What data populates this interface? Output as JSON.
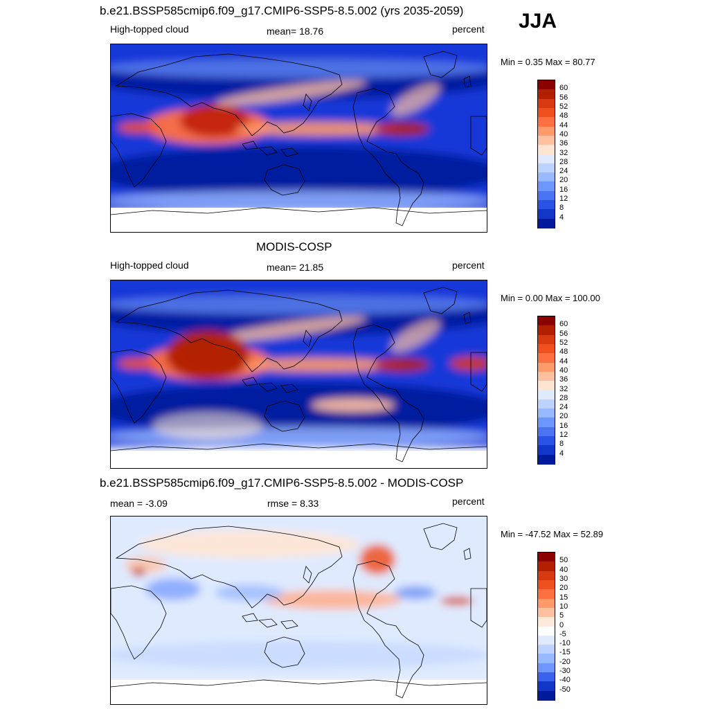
{
  "season": "JJA",
  "panels": [
    {
      "title": "b.e21.BSSP585cmip6.f09_g17.CMIP6-SSP5-8.5.002 (yrs 2035-2059)",
      "left": "High-topped cloud",
      "center": "mean=  18.76",
      "right": "percent",
      "minmax": "Min =   0.35 Max =  80.77",
      "colorbar": {
        "labels": [
          "60",
          "56",
          "52",
          "48",
          "44",
          "40",
          "36",
          "32",
          "28",
          "24",
          "20",
          "16",
          "12",
          "8",
          "4"
        ],
        "colors": [
          "#8b0000",
          "#b22000",
          "#d83a10",
          "#f05020",
          "#ff7040",
          "#ff9a6a",
          "#ffc0a0",
          "#ffe4d2",
          "#dfeaff",
          "#bdd2ff",
          "#98b8ff",
          "#6e96ff",
          "#4a74f2",
          "#2a52e4",
          "#1236c8",
          "#001a9c"
        ]
      },
      "style": "model"
    },
    {
      "title": "MODIS-COSP",
      "left": "High-topped cloud",
      "center": "mean=  21.85",
      "right": "percent",
      "minmax": "Min =   0.00 Max = 100.00",
      "colorbar": {
        "labels": [
          "60",
          "56",
          "52",
          "48",
          "44",
          "40",
          "36",
          "32",
          "28",
          "24",
          "20",
          "16",
          "12",
          "8",
          "4"
        ],
        "colors": [
          "#8b0000",
          "#b22000",
          "#d83a10",
          "#f05020",
          "#ff7040",
          "#ff9a6a",
          "#ffc0a0",
          "#ffe4d2",
          "#dfeaff",
          "#bdd2ff",
          "#98b8ff",
          "#6e96ff",
          "#4a74f2",
          "#2a52e4",
          "#1236c8",
          "#001a9c"
        ]
      },
      "style": "obs"
    },
    {
      "title": "b.e21.BSSP585cmip6.f09_g17.CMIP6-SSP5-8.5.002 - MODIS-COSP",
      "left": "mean =  -3.09",
      "center": "rmse =   8.33",
      "right": "percent",
      "minmax": "Min = -47.52 Max =  52.89",
      "colorbar": {
        "labels": [
          "50",
          "40",
          "30",
          "20",
          "15",
          "10",
          "5",
          "0",
          "-5",
          "-10",
          "-15",
          "-20",
          "-30",
          "-40",
          "-50"
        ],
        "colors": [
          "#8b0000",
          "#b22000",
          "#d83a10",
          "#f05020",
          "#ff7040",
          "#ff9a6a",
          "#ffc0a0",
          "#ffe8dc",
          "#ffffff",
          "#dfeaff",
          "#bdd2ff",
          "#98b8ff",
          "#6e96ff",
          "#3a62ea",
          "#1236c8",
          "#001a9c"
        ]
      },
      "style": "diff"
    }
  ]
}
